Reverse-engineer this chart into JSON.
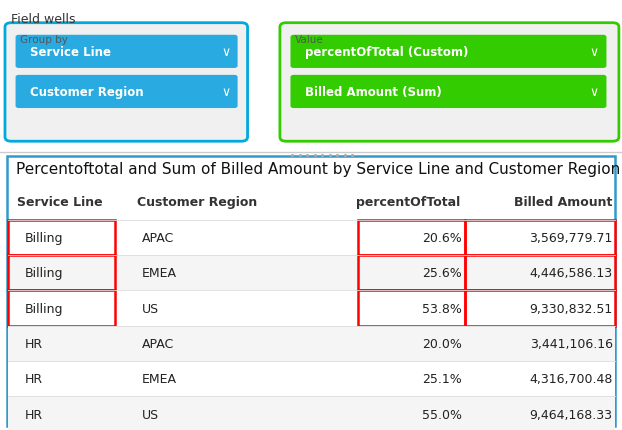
{
  "title": "Percentoftotal and Sum of Billed Amount by Service Line and Customer Region",
  "field_wells_label": "Field wells",
  "group_by_label": "Group by",
  "group_by_items": [
    "Service Line",
    "Customer Region"
  ],
  "value_label": "Value",
  "value_items": [
    "percentOfTotal (Custom)",
    "Billed Amount (Sum)"
  ],
  "col_headers": [
    "Service Line",
    "Customer Region",
    "percentOfTotal",
    "Billed Amount"
  ],
  "rows": [
    [
      "Billing",
      "APAC",
      "20.6%",
      "3,569,779.71"
    ],
    [
      "Billing",
      "EMEA",
      "25.6%",
      "4,446,586.13"
    ],
    [
      "Billing",
      "US",
      "53.8%",
      "9,330,832.51"
    ],
    [
      "HR",
      "APAC",
      "20.0%",
      "3,441,106.16"
    ],
    [
      "HR",
      "EMEA",
      "25.1%",
      "4,316,700.48"
    ],
    [
      "HR",
      "US",
      "55.0%",
      "9,464,168.33"
    ]
  ],
  "highlighted_rows": [
    0,
    1,
    2
  ],
  "red_border_color": "#ff0000",
  "blue_box_color": "#00aadd",
  "green_box_color": "#33cc00",
  "blue_btn_color": "#29abe2",
  "green_btn_color": "#33cc00",
  "row_even_bg": "#ffffff",
  "row_odd_bg": "#f5f5f5",
  "bg_color": "#ffffff",
  "title_fontsize": 11,
  "header_fontsize": 9,
  "cell_fontsize": 9
}
